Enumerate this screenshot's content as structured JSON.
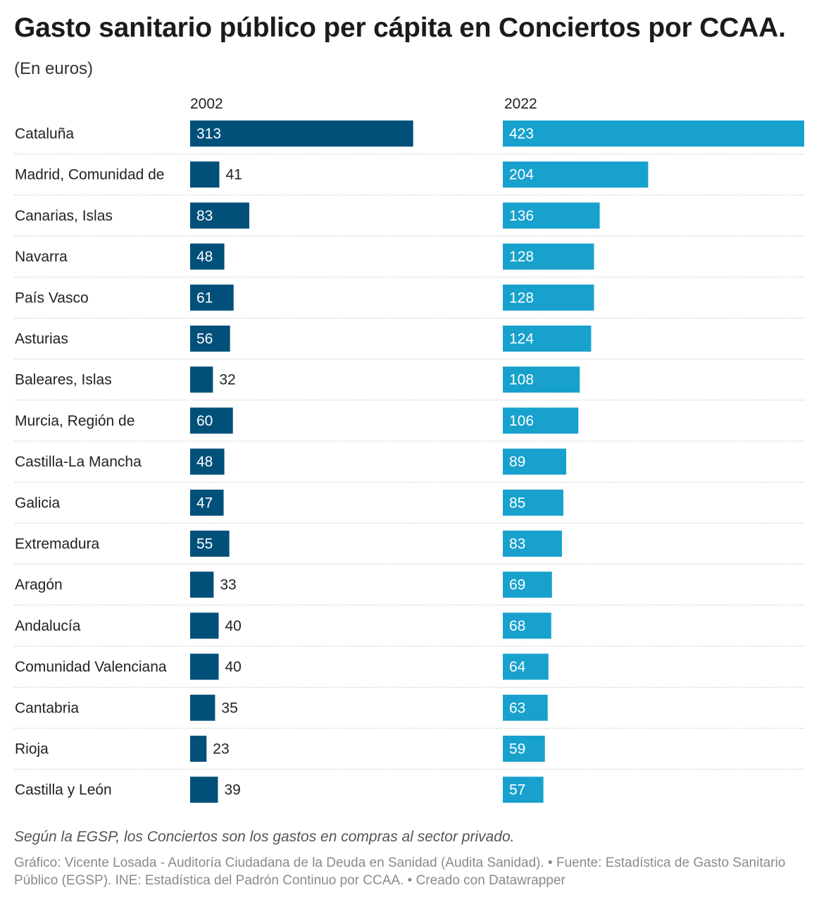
{
  "chart_data": {
    "type": "bar",
    "title": "Gasto sanitario público per cápita en Conciertos por CCAA.",
    "subtitle": "(En euros)",
    "categories": [
      "Cataluña",
      "Madrid, Comunidad de",
      "Canarias, Islas",
      "Navarra",
      "País Vasco",
      "Asturias",
      "Baleares, Islas",
      "Murcia, Región de",
      "Castilla-La Mancha",
      "Galicia",
      "Extremadura",
      "Aragón",
      "Andalucía",
      "Comunidad Valenciana",
      "Cantabria",
      "Rioja",
      "Castilla y León"
    ],
    "series": [
      {
        "name": "2002",
        "color": "#00507a",
        "values": [
          313,
          41,
          83,
          48,
          61,
          56,
          32,
          60,
          48,
          47,
          55,
          33,
          40,
          40,
          35,
          23,
          39
        ]
      },
      {
        "name": "2022",
        "color": "#18a1cd",
        "values": [
          423,
          204,
          136,
          128,
          128,
          124,
          108,
          106,
          89,
          85,
          83,
          69,
          68,
          64,
          63,
          59,
          57
        ]
      }
    ],
    "xlim": [
      0,
      423
    ],
    "grid": false,
    "legend": "none"
  },
  "footer": {
    "note": "Según la EGSP, los Conciertos son los gastos en compras al sector privado.",
    "source": "Gráfico: Vicente Losada - Auditoría Ciudadana de la Deuda en Sanidad (Audita Sanidad). • Fuente: Estadística de Gasto Sanitario Público (EGSP). INE: Estadística del Padrón Continuo por CCAA. • Creado con Datawrapper"
  }
}
